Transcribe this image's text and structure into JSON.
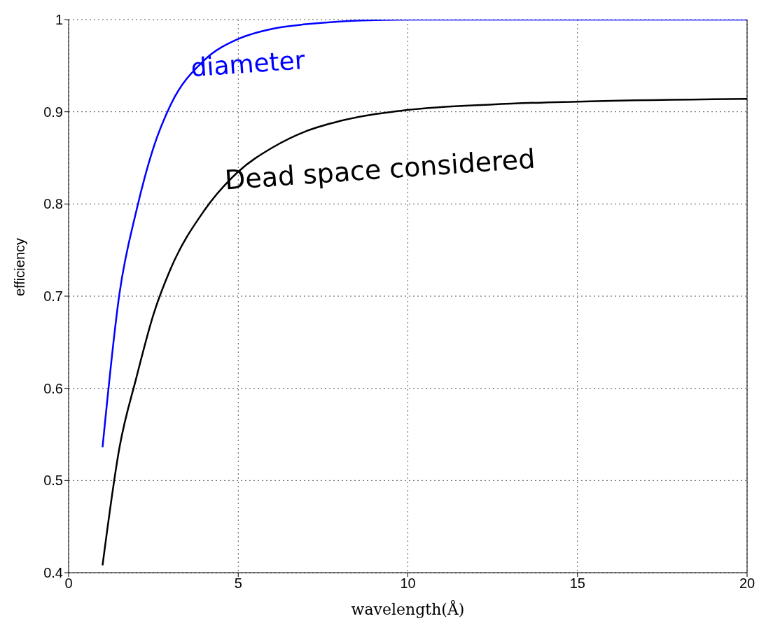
{
  "chart_data": {
    "type": "line",
    "xlabel": "wavelength(Å)",
    "ylabel": "efficiency",
    "x": [
      1,
      1.5,
      2,
      2.5,
      3,
      4,
      5,
      6,
      7,
      8,
      10,
      12.5,
      15,
      20
    ],
    "series": [
      {
        "name": "diameter",
        "color": "#0000ff",
        "values": [
          0.536,
          0.703,
          0.793,
          0.861,
          0.907,
          0.956,
          0.979,
          0.99,
          0.995,
          0.998,
          1,
          1,
          1,
          1
        ]
      },
      {
        "name": "Dead space considered",
        "color": "#000000",
        "values": [
          0.408,
          0.536,
          0.612,
          0.68,
          0.729,
          0.793,
          0.835,
          0.861,
          0.879,
          0.89,
          0.902,
          0.908,
          0.911,
          0.914
        ]
      }
    ],
    "xlim": [
      0,
      20
    ],
    "xticks": [
      0,
      5,
      10,
      15,
      20
    ],
    "ylim": [
      0.4,
      1
    ],
    "yticks": [
      0.4,
      0.5,
      0.6,
      0.7,
      0.8,
      0.9,
      1
    ],
    "grid": true,
    "legend": false
  }
}
